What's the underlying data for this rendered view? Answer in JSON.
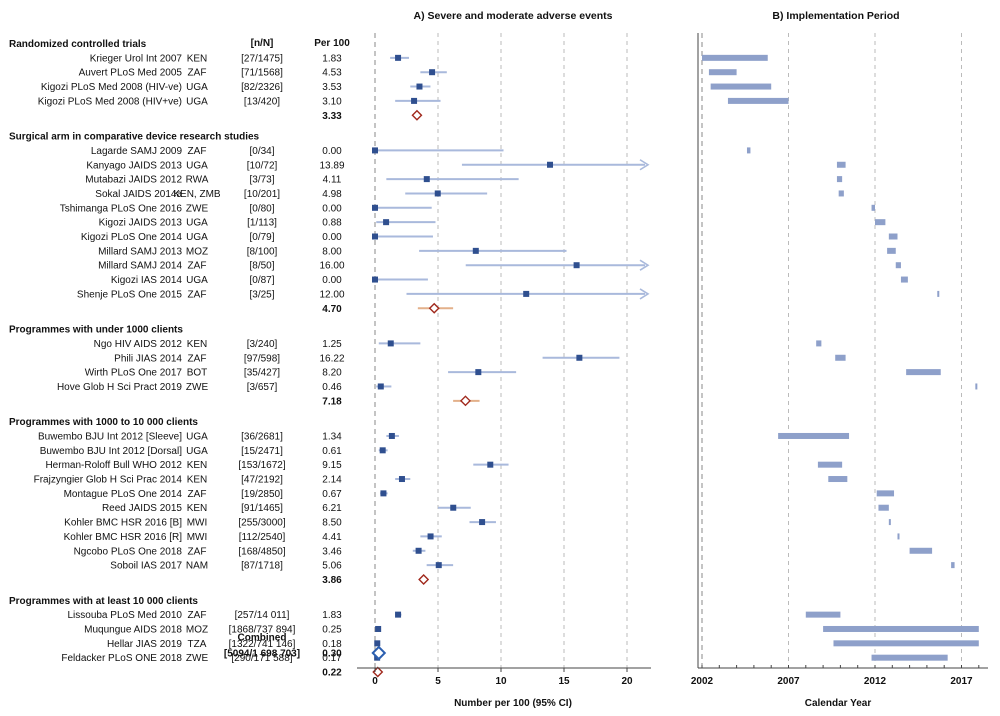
{
  "chart_data": [
    {
      "type": "forest",
      "title": "A) Severe and moderate adverse events",
      "xlabel": "Number per 100  (95% CI)",
      "xlim": [
        0,
        22
      ],
      "xticks": [
        0,
        5,
        10,
        15,
        20
      ],
      "column_headers": {
        "count": "[n/N]",
        "rate": "Per 100"
      },
      "groups": [
        {
          "name": "Randomized controlled trials",
          "studies": [
            {
              "study": "Krieger Urol Int 2007",
              "country": "KEN",
              "nN": "[27/1475]",
              "rate": 1.83,
              "rate_label": "1.83",
              "ci": [
                1.2,
                2.7
              ]
            },
            {
              "study": "Auvert PLoS Med 2005",
              "country": "ZAF",
              "nN": "[71/1568]",
              "rate": 4.53,
              "rate_label": "4.53",
              "ci": [
                3.6,
                5.7
              ]
            },
            {
              "study": "Kigozi PLoS Med 2008 (HIV-ve)",
              "country": "UGA",
              "nN": "[82/2326]",
              "rate": 3.53,
              "rate_label": "3.53",
              "ci": [
                2.8,
                4.4
              ]
            },
            {
              "study": "Kigozi PLoS Med 2008 (HIV+ve)",
              "country": "UGA",
              "nN": "[13/420]",
              "rate": 3.1,
              "rate_label": "3.10",
              "ci": [
                1.6,
                5.2
              ]
            }
          ],
          "pooled": {
            "rate": 3.33,
            "rate_label": "3.33",
            "ci": [
              3.1,
              3.6
            ]
          }
        },
        {
          "name": "Surgical arm in comparative device research studies",
          "studies": [
            {
              "study": "Lagarde SAMJ 2009",
              "country": "ZAF",
              "nN": "[0/34]",
              "rate": 0.0,
              "rate_label": "0.00",
              "ci": [
                0,
                10.2
              ]
            },
            {
              "study": "Kanyago JAIDS 2013",
              "country": "UGA",
              "nN": "[10/72]",
              "rate": 13.89,
              "rate_label": "13.89",
              "ci": [
                6.9,
                22
              ]
            },
            {
              "study": "Mutabazi JAIDS 2012",
              "country": "RWA",
              "nN": "[3/73]",
              "rate": 4.11,
              "rate_label": "4.11",
              "ci": [
                0.9,
                11.4
              ]
            },
            {
              "study": "Sokal JAIDS 2014a",
              "country": "KEN, ZMB",
              "nN": "[10/201]",
              "rate": 4.98,
              "rate_label": "4.98",
              "ci": [
                2.4,
                8.9
              ]
            },
            {
              "study": "Tshimanga PLoS One 2016",
              "country": "ZWE",
              "nN": "[0/80]",
              "rate": 0.0,
              "rate_label": "0.00",
              "ci": [
                0,
                4.5
              ]
            },
            {
              "study": "Kigozi JAIDS 2013",
              "country": "UGA",
              "nN": "[1/113]",
              "rate": 0.88,
              "rate_label": "0.88",
              "ci": [
                0.1,
                4.8
              ]
            },
            {
              "study": "Kigozi PLoS One 2014",
              "country": "UGA",
              "nN": "[0/79]",
              "rate": 0.0,
              "rate_label": "0.00",
              "ci": [
                0,
                4.6
              ]
            },
            {
              "study": "Millard SAMJ 2013",
              "country": "MOZ",
              "nN": "[8/100]",
              "rate": 8.0,
              "rate_label": "8.00",
              "ci": [
                3.5,
                15.2
              ]
            },
            {
              "study": "Millard SAMJ 2014",
              "country": "ZAF",
              "nN": "[8/50]",
              "rate": 16.0,
              "rate_label": "16.00",
              "ci": [
                7.2,
                22
              ]
            },
            {
              "study": "Kigozi IAS 2014",
              "country": "UGA",
              "nN": "[0/87]",
              "rate": 0.0,
              "rate_label": "0.00",
              "ci": [
                0,
                4.2
              ]
            },
            {
              "study": "Shenje PLoS One 2015",
              "country": "ZAF",
              "nN": "[3/25]",
              "rate": 12.0,
              "rate_label": "12.00",
              "ci": [
                2.5,
                22
              ]
            }
          ],
          "pooled": {
            "rate": 4.7,
            "rate_label": "4.70",
            "ci": [
              3.4,
              6.2
            ]
          }
        },
        {
          "name": "Programmes with under 1000 clients",
          "studies": [
            {
              "study": "Ngo HIV AIDS 2012",
              "country": "KEN",
              "nN": "[3/240]",
              "rate": 1.25,
              "rate_label": "1.25",
              "ci": [
                0.3,
                3.6
              ]
            },
            {
              "study": "Phili JIAS 2014",
              "country": "ZAF",
              "nN": "[97/598]",
              "rate": 16.22,
              "rate_label": "16.22",
              "ci": [
                13.3,
                19.4
              ]
            },
            {
              "study": "Wirth PLoS One 2017",
              "country": "BOT",
              "nN": "[35/427]",
              "rate": 8.2,
              "rate_label": "8.20",
              "ci": [
                5.8,
                11.2
              ]
            },
            {
              "study": "Hove Glob H Sci Pract 2019",
              "country": "ZWE",
              "nN": "[3/657]",
              "rate": 0.46,
              "rate_label": "0.46",
              "ci": [
                0.1,
                1.3
              ]
            }
          ],
          "pooled": {
            "rate": 7.18,
            "rate_label": "7.18",
            "ci": [
              6.2,
              8.3
            ]
          }
        },
        {
          "name": "Programmes with 1000 to 10 000 clients",
          "studies": [
            {
              "study": "Buwembo BJU Int 2012 [Sleeve]",
              "country": "UGA",
              "nN": "[36/2681]",
              "rate": 1.34,
              "rate_label": "1.34",
              "ci": [
                0.9,
                1.9
              ]
            },
            {
              "study": "Buwembo BJU Int 2012 [Dorsal]",
              "country": "UGA",
              "nN": "[15/2471]",
              "rate": 0.61,
              "rate_label": "0.61",
              "ci": [
                0.3,
                1.0
              ]
            },
            {
              "study": "Herman-Roloff Bull WHO 2012",
              "country": "KEN",
              "nN": "[153/1672]",
              "rate": 9.15,
              "rate_label": "9.15",
              "ci": [
                7.8,
                10.6
              ]
            },
            {
              "study": "Frajzyngier Glob H Sci Prac 2014",
              "country": "KEN",
              "nN": "[47/2192]",
              "rate": 2.14,
              "rate_label": "2.14",
              "ci": [
                1.6,
                2.8
              ]
            },
            {
              "study": "Montague PLoS One 2014",
              "country": "ZAF",
              "nN": "[19/2850]",
              "rate": 0.67,
              "rate_label": "0.67",
              "ci": [
                0.4,
                1.0
              ]
            },
            {
              "study": "Reed JAIDS 2015",
              "country": "KEN",
              "nN": "[91/1465]",
              "rate": 6.21,
              "rate_label": "6.21",
              "ci": [
                5.0,
                7.6
              ]
            },
            {
              "study": "Kohler BMC HSR 2016 [B]",
              "country": "MWI",
              "nN": "[255/3000]",
              "rate": 8.5,
              "rate_label": "8.50",
              "ci": [
                7.5,
                9.6
              ]
            },
            {
              "study": "Kohler BMC HSR 2016 [R]",
              "country": "MWI",
              "nN": "[112/2540]",
              "rate": 4.41,
              "rate_label": "4.41",
              "ci": [
                3.6,
                5.3
              ]
            },
            {
              "study": "Ngcobo PLoS One 2018",
              "country": "ZAF",
              "nN": "[168/4850]",
              "rate": 3.46,
              "rate_label": "3.46",
              "ci": [
                3.0,
                4.0
              ]
            },
            {
              "study": "Soboil IAS 2017",
              "country": "NAM",
              "nN": "[87/1718]",
              "rate": 5.06,
              "rate_label": "5.06",
              "ci": [
                4.1,
                6.2
              ]
            }
          ],
          "pooled": {
            "rate": 3.86,
            "rate_label": "3.86",
            "ci": [
              3.6,
              4.1
            ]
          }
        },
        {
          "name": "Programmes with at least 10 000 clients",
          "studies": [
            {
              "study": "Lissouba PLoS Med 2010",
              "country": "ZAF",
              "nN": "[257/14 011]",
              "rate": 1.83,
              "rate_label": "1.83",
              "ci": [
                1.6,
                2.1
              ]
            },
            {
              "study": "Muqungue AIDS 2018",
              "country": "MOZ",
              "nN": "[1868/737 894]",
              "rate": 0.25,
              "rate_label": "0.25",
              "ci": [
                0.24,
                0.26
              ]
            },
            {
              "study": "Hellar JIAS 2019",
              "country": "TZA",
              "nN": "[1322/741 146]",
              "rate": 0.18,
              "rate_label": "0.18",
              "ci": [
                0.17,
                0.19
              ]
            },
            {
              "study": "Feldacker PLoS ONE 2018",
              "country": "ZWE",
              "nN": "[290/171 588]",
              "rate": 0.17,
              "rate_label": "0.17",
              "ci": [
                0.15,
                0.19
              ]
            }
          ],
          "pooled": {
            "rate": 0.22,
            "rate_label": "0.22",
            "ci": [
              0.2,
              0.24
            ]
          }
        }
      ],
      "combined": {
        "label": "Combined",
        "nN": "[5094/1 698 703]",
        "rate": 0.3,
        "rate_label": "0.30",
        "ci": [
          0.29,
          0.31
        ]
      }
    },
    {
      "type": "gantt",
      "title": "B) Implementation Period",
      "xlabel": "Calendar Year",
      "xlim": [
        2002,
        2018.2
      ],
      "xticks": [
        2002,
        2007,
        2012,
        2017
      ],
      "reference_line": 2002,
      "periods": [
        [
          2002.0,
          2005.8
        ],
        [
          2002.4,
          2004.0
        ],
        [
          2002.5,
          2006.0
        ],
        [
          2003.5,
          2007.0
        ],
        null,
        [
          2004.6,
          2004.8
        ],
        [
          2009.8,
          2010.3
        ],
        [
          2009.8,
          2010.1
        ],
        [
          2009.9,
          2010.2
        ],
        [
          2011.8,
          2012.0
        ],
        [
          2012.0,
          2012.6
        ],
        [
          2012.8,
          2013.3
        ],
        [
          2012.7,
          2013.2
        ],
        [
          2013.2,
          2013.5
        ],
        [
          2013.5,
          2013.9
        ],
        [
          2015.6,
          2015.7
        ],
        null,
        [
          2008.6,
          2008.9
        ],
        [
          2009.7,
          2010.3
        ],
        [
          2013.8,
          2015.8
        ],
        [
          2017.8,
          2017.9
        ],
        null,
        [
          2006.4,
          2010.5
        ],
        null,
        [
          2008.7,
          2010.1
        ],
        [
          2009.3,
          2010.4
        ],
        [
          2012.1,
          2013.1
        ],
        [
          2012.2,
          2012.8
        ],
        [
          2012.8,
          2012.85
        ],
        [
          2013.3,
          2013.35
        ],
        [
          2014.0,
          2015.3
        ],
        [
          2016.4,
          2016.6
        ],
        null,
        [
          2008.0,
          2010.0
        ],
        [
          2009.0,
          2018.0
        ],
        [
          2009.6,
          2018.0
        ],
        [
          2011.8,
          2016.2
        ]
      ]
    }
  ]
}
